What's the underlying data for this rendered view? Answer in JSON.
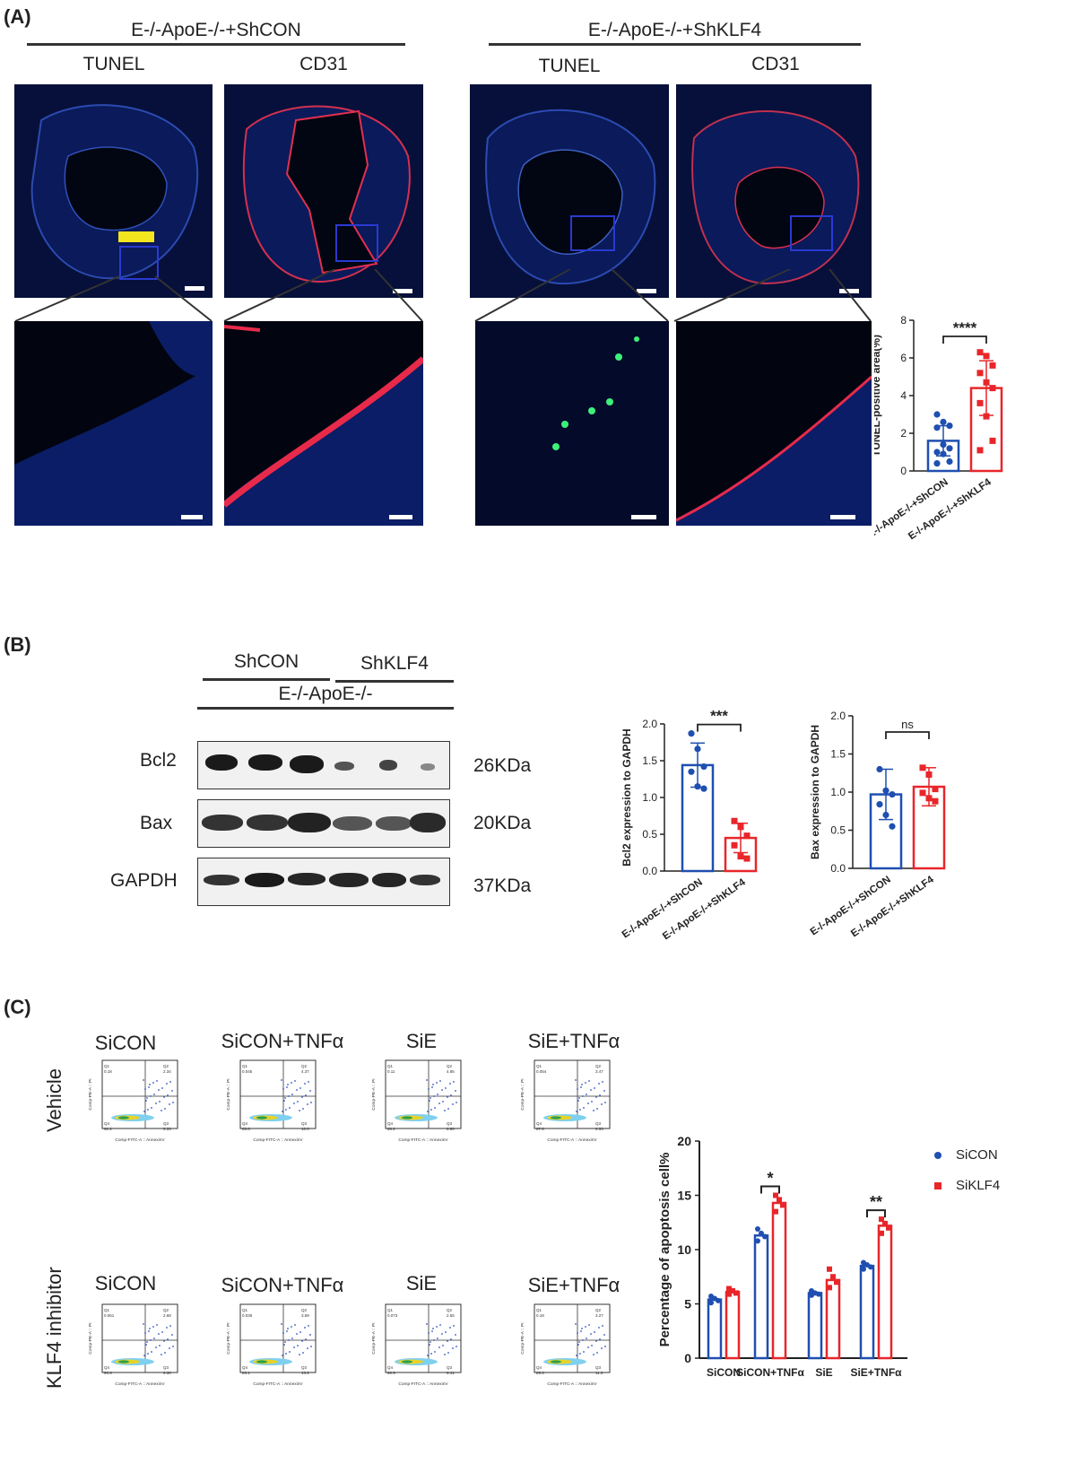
{
  "panel_a": {
    "label": "(A)",
    "group_left": "E-/-ApoE-/-+ShCON",
    "group_right": "E-/-ApoE-/-+ShKLF4",
    "sub_left_1": "TUNEL",
    "sub_left_2": "CD31",
    "sub_right_1": "TUNEL",
    "sub_right_2": "CD31"
  },
  "panel_b": {
    "label": "(B)",
    "group1": "ShCON",
    "group2": "ShKLF4",
    "group_all": "E-/-ApoE-/-",
    "rows": [
      {
        "name": "Bcl2",
        "size": "26KDa"
      },
      {
        "name": "Bax",
        "size": "20KDa"
      },
      {
        "name": "GAPDH",
        "size": "37KDa"
      }
    ]
  },
  "panel_c": {
    "label": "(C)",
    "row1": "Vehicle",
    "row2": "KLF4 inhibitor",
    "titles": [
      "SiCON",
      "SiCON+TNFα",
      "SiE",
      "SiE+TNFα"
    ],
    "flow_axis_x": "Comp-FITC-A :: AnnexinV",
    "flow_axis_y": "Comp-PE-A :: PI",
    "quadrant_labels": [
      "Q1",
      "Q2",
      "Q3",
      "Q4"
    ],
    "quadrants_vehicle": [
      [
        "0.18",
        "2.34",
        "5.33",
        "92.2"
      ],
      [
        "0.045",
        "4.37",
        "10.0",
        "85.6"
      ],
      [
        "0.11",
        "4.85",
        "6.90",
        "88.2"
      ],
      [
        "0.054",
        "3.47",
        "8.53",
        "87.6"
      ]
    ],
    "quadrants_inhibitor": [
      [
        "0.061",
        "2.68",
        "6.38",
        "90.6"
      ],
      [
        "0.035",
        "3.69",
        "13.2",
        "83.1"
      ],
      [
        "0.073",
        "2.55",
        "6.41",
        "90.9"
      ],
      [
        "0.18",
        "3.27",
        "11.3",
        "85.3"
      ]
    ]
  },
  "chart_data": [
    {
      "type": "bar",
      "ylabel": "TUNEL-positive area(%)",
      "categories": [
        "E-/-ApoE-/-+ShCON",
        "E-/-ApoE-/-+ShKLF4"
      ],
      "values": [
        1.6,
        4.4
      ],
      "errors": [
        0.8,
        1.45
      ],
      "points": [
        [
          3.0,
          2.6,
          2.4,
          2.3,
          1.4,
          1.2,
          1.0,
          0.9,
          0.5,
          0.4
        ],
        [
          6.3,
          6.1,
          5.6,
          5.2,
          4.7,
          4.4,
          3.6,
          2.9,
          1.6,
          1.1
        ]
      ],
      "colors": [
        "#1f4fb0",
        "#e8262a"
      ],
      "ylim": [
        0,
        8
      ],
      "yticks": [
        "0",
        "2",
        "4",
        "6",
        "8"
      ],
      "significance": "****"
    },
    {
      "type": "bar",
      "ylabel": "Bcl2 expression to GAPDH",
      "categories": [
        "E-/-ApoE-/-+ShCON",
        "E-/-ApoE-/-+ShKLF4"
      ],
      "values": [
        1.44,
        0.45
      ],
      "errors": [
        0.3,
        0.2
      ],
      "points": [
        [
          1.87,
          1.66,
          1.42,
          1.35,
          1.15,
          1.12
        ],
        [
          0.68,
          0.6,
          0.48,
          0.35,
          0.2,
          0.17
        ]
      ],
      "colors": [
        "#1f4fb0",
        "#e8262a"
      ],
      "ylim": [
        0,
        2.0
      ],
      "yticks": [
        "0.0",
        "0.5",
        "1.0",
        "1.5",
        "2.0"
      ],
      "significance": "***"
    },
    {
      "type": "bar",
      "ylabel": "Bax expression to GAPDH",
      "categories": [
        "E-/-ApoE-/-+ShCON",
        "E-/-ApoE-/-+ShKLF4"
      ],
      "values": [
        0.97,
        1.07
      ],
      "errors": [
        0.33,
        0.25
      ],
      "points": [
        [
          1.3,
          1.02,
          0.97,
          0.84,
          0.7,
          0.55
        ],
        [
          1.32,
          1.23,
          1.04,
          0.99,
          0.92,
          0.88
        ]
      ],
      "colors": [
        "#1f4fb0",
        "#e8262a"
      ],
      "ylim": [
        0,
        2.0
      ],
      "yticks": [
        "0.0",
        "0.5",
        "1.0",
        "1.5",
        "2.0"
      ],
      "significance": "ns"
    },
    {
      "type": "bar",
      "ylabel": "Percentage of apoptosis cell%",
      "categories": [
        "SiCON",
        "SiCON+TNFα",
        "SiE",
        "SiE+TNFα"
      ],
      "series": [
        {
          "name": "SiCON",
          "values": [
            5.4,
            11.3,
            6.0,
            8.5
          ],
          "color": "#1f4fb0",
          "points": [
            [
              5.7,
              5.5,
              5.3,
              5.1
            ],
            [
              11.9,
              11.5,
              11.2,
              10.8
            ],
            [
              6.2,
              6.0,
              5.9,
              5.8
            ],
            [
              8.8,
              8.6,
              8.4,
              8.2
            ]
          ]
        },
        {
          "name": "SiKLF4",
          "values": [
            6.1,
            14.3,
            7.2,
            12.2
          ],
          "color": "#e8262a",
          "points": [
            [
              6.4,
              6.2,
              6.0,
              5.9
            ],
            [
              15.0,
              14.6,
              14.1,
              13.5
            ],
            [
              8.2,
              7.5,
              7.0,
              6.5
            ],
            [
              12.8,
              12.4,
              12.0,
              11.5
            ]
          ]
        }
      ],
      "ylim": [
        0,
        20
      ],
      "yticks": [
        "0",
        "5",
        "10",
        "15",
        "20"
      ],
      "significance": [
        "",
        "*",
        "",
        "**"
      ]
    }
  ]
}
